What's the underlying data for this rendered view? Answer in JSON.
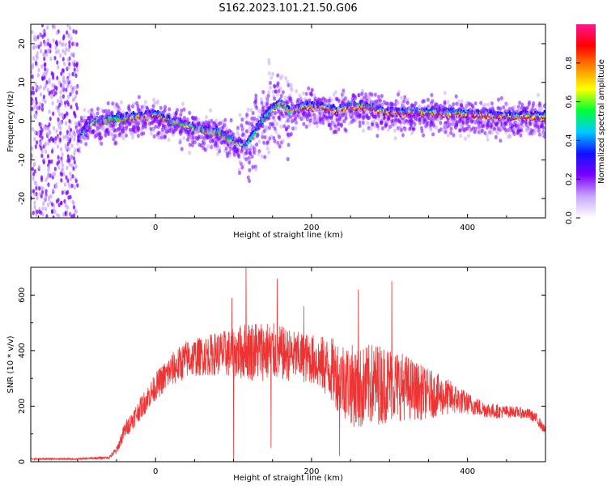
{
  "figure": {
    "title": "S162.2023.101.21.50.G06"
  },
  "colors": {
    "snr_line": "#ee3333",
    "colormap": [
      "#ffffff",
      "#c9a6ff",
      "#7a00ff",
      "#1010ff",
      "#00ccff",
      "#00ff33",
      "#ffff00",
      "#ff8800",
      "#ff0000",
      "#ff1493"
    ]
  },
  "chart_data": [
    {
      "type": "heatmap",
      "title": "S162.2023.101.21.50.G06",
      "xlabel": "Height of straight line (km)",
      "ylabel": "Frequency (Hz)",
      "xlim": [
        -160,
        500
      ],
      "ylim": [
        -25,
        25
      ],
      "x_ticks": [
        0,
        200,
        400
      ],
      "y_ticks": [
        -20,
        -10,
        0,
        10,
        20
      ],
      "colorbar": {
        "label": "Normalized spectral amplitude",
        "range": [
          0,
          1
        ],
        "ticks": [
          "0.0",
          "0.2",
          "0.4",
          "0.6",
          "0.8"
        ],
        "tick_values": [
          0,
          0.2,
          0.4,
          0.6,
          0.8
        ]
      },
      "noise_region_x": [
        -160,
        -100
      ],
      "ridge": {
        "x": [
          -100,
          -90,
          -80,
          -60,
          -40,
          -20,
          0,
          20,
          40,
          60,
          80,
          100,
          115,
          130,
          145,
          160,
          170,
          190,
          210,
          230,
          250,
          270,
          285,
          300,
          350,
          400,
          450,
          500
        ],
        "frequency": [
          -5,
          -2,
          -1,
          -0.5,
          0,
          0.5,
          1,
          -1,
          -2,
          -3,
          -3.5,
          -6,
          -7,
          -2,
          2,
          4,
          2,
          3,
          3,
          2,
          3,
          3,
          2,
          1.5,
          1.5,
          1,
          0.5,
          0.5
        ],
        "amplitude": [
          0.4,
          0.6,
          0.7,
          0.8,
          0.8,
          0.85,
          0.9,
          0.8,
          0.7,
          0.75,
          0.8,
          0.7,
          0.6,
          0.55,
          0.6,
          0.75,
          0.8,
          0.85,
          0.9,
          0.85,
          0.9,
          0.95,
          0.85,
          0.9,
          0.9,
          0.85,
          0.85,
          0.9
        ]
      }
    },
    {
      "type": "line",
      "xlabel": "Height of straight line (km)",
      "ylabel": "SNR (10 * v/v)",
      "xlim": [
        -160,
        500
      ],
      "ylim": [
        0,
        700
      ],
      "x_ticks": [
        0,
        200,
        400
      ],
      "y_ticks": [
        0,
        200,
        400,
        600
      ],
      "series": [
        {
          "x": [
            -160,
            -100,
            -60,
            -50,
            -40,
            -20,
            0,
            20,
            40,
            60,
            80,
            100,
            120,
            140,
            160,
            180,
            200,
            220,
            240,
            260,
            280,
            300,
            320,
            340,
            360,
            380,
            400,
            420,
            440,
            460,
            480,
            490,
            500
          ],
          "mean": [
            10,
            10,
            15,
            40,
            110,
            190,
            270,
            330,
            370,
            380,
            390,
            390,
            400,
            400,
            390,
            380,
            370,
            340,
            300,
            260,
            280,
            280,
            270,
            250,
            240,
            230,
            210,
            190,
            180,
            180,
            170,
            150,
            110
          ],
          "jitter": [
            3,
            3,
            5,
            15,
            30,
            40,
            50,
            60,
            70,
            70,
            80,
            90,
            110,
            110,
            100,
            90,
            90,
            110,
            140,
            150,
            150,
            140,
            120,
            100,
            80,
            60,
            40,
            30,
            25,
            20,
            20,
            20,
            15
          ],
          "spikes": [
            {
              "x": 116,
              "value": 705
            },
            {
              "x": 156,
              "value": 660
            },
            {
              "x": 260,
              "value": 620
            },
            {
              "x": 303,
              "value": 650
            },
            {
              "x": 98,
              "value": 590
            },
            {
              "x": 190,
              "value": 560
            }
          ],
          "dips": [
            {
              "x": 100,
              "value": 0
            },
            {
              "x": 148,
              "value": 50
            },
            {
              "x": 236,
              "value": 20
            }
          ]
        }
      ]
    }
  ]
}
